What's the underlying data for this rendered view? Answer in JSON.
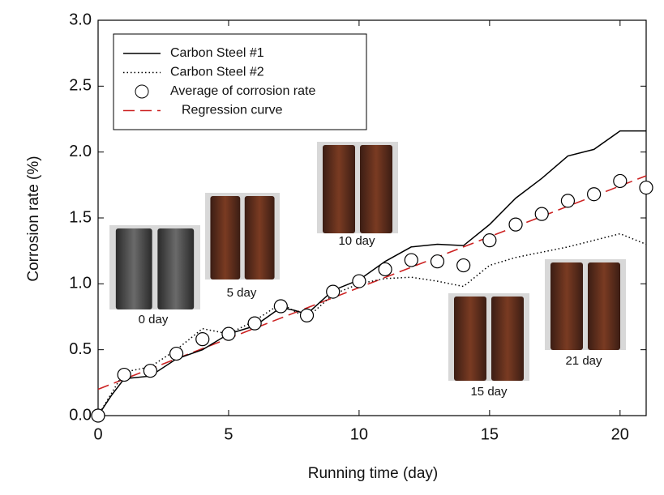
{
  "chart_data": {
    "type": "line",
    "xlabel": "Running time  (day)",
    "ylabel": "Corrosion rate (%)",
    "xlim": [
      0,
      21
    ],
    "ylim": [
      0,
      3
    ],
    "xticks": [
      0,
      5,
      10,
      15,
      20
    ],
    "yticks": [
      {
        "value": 0,
        "label": "0.0"
      },
      0.5,
      {
        "value": 1,
        "label": "1.0"
      },
      1.5,
      {
        "value": 2,
        "label": "2.0"
      },
      2.5,
      {
        "value": 3,
        "label": "3.0"
      }
    ],
    "series": [
      {
        "name": "Carbon Steel  #1",
        "color": "#000000",
        "style": "solid",
        "x": [
          0,
          0.5,
          1,
          2,
          3,
          4,
          5,
          6,
          7,
          7.5,
          8,
          9,
          10,
          11,
          12,
          13,
          14,
          15,
          16,
          17,
          18,
          19,
          20,
          21
        ],
        "values": [
          0,
          0.15,
          0.28,
          0.3,
          0.43,
          0.5,
          0.62,
          0.68,
          0.82,
          0.8,
          0.77,
          0.95,
          1.03,
          1.17,
          1.28,
          1.3,
          1.29,
          1.45,
          1.65,
          1.8,
          1.97,
          2.02,
          2.16,
          2.16
        ]
      },
      {
        "name": "Carbon Steel  #2",
        "color": "#000000",
        "style": "dotted",
        "x": [
          0,
          1,
          2,
          3,
          4,
          5,
          6,
          7,
          8,
          9,
          10,
          11,
          12,
          13,
          14,
          15,
          16,
          17,
          18,
          19,
          20,
          21
        ],
        "values": [
          0,
          0.33,
          0.37,
          0.5,
          0.66,
          0.62,
          0.72,
          0.85,
          0.74,
          0.92,
          1.0,
          1.04,
          1.05,
          1.02,
          0.98,
          1.14,
          1.2,
          1.24,
          1.28,
          1.33,
          1.38,
          1.3
        ]
      },
      {
        "name": "Average of corrosion rate",
        "color": "#000000",
        "style": "markers",
        "x": [
          0,
          1,
          2,
          3,
          4,
          5,
          6,
          7,
          8,
          9,
          10,
          11,
          12,
          13,
          14,
          15,
          16,
          17,
          18,
          19,
          20,
          21
        ],
        "values": [
          0,
          0.31,
          0.34,
          0.47,
          0.58,
          0.62,
          0.7,
          0.83,
          0.76,
          0.94,
          1.02,
          1.11,
          1.18,
          1.17,
          1.14,
          1.33,
          1.45,
          1.53,
          1.63,
          1.68,
          1.78,
          1.73
        ]
      },
      {
        "name": "Regression curve",
        "color": "#cc2222",
        "style": "dashed",
        "x": [
          0,
          21
        ],
        "values": [
          0.2,
          1.82
        ]
      }
    ],
    "annotations": [
      "0 day",
      "5 day",
      "10 day",
      "15 day",
      "21 day"
    ]
  }
}
